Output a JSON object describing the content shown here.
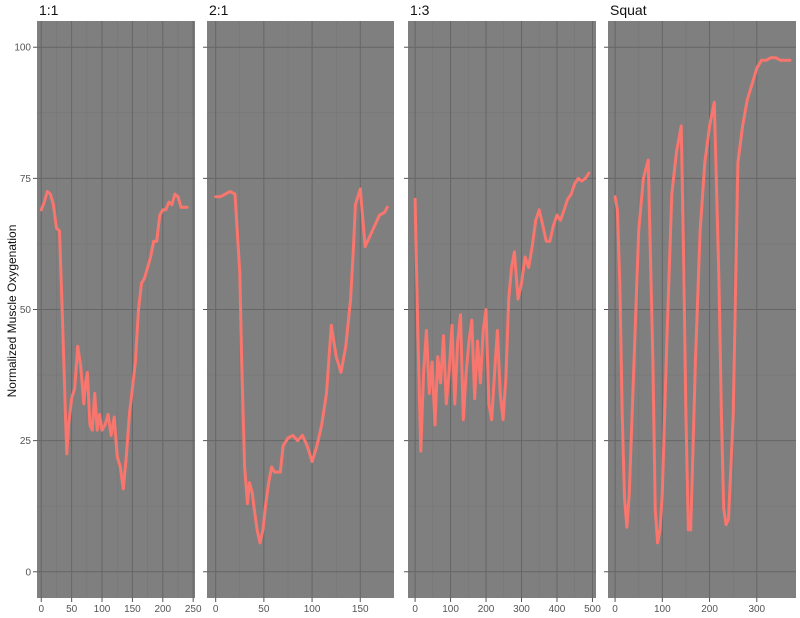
{
  "colors": {
    "panel_bg": "#7f7f7f",
    "grid_major": "#666666",
    "grid_minor": "#767676",
    "line": "#f8766d"
  },
  "chart_data": {
    "type": "line",
    "ylabel": "Normalized Muscle Oxygenation",
    "ylim": [
      -5,
      105
    ],
    "y_ticks": [
      0,
      25,
      50,
      75,
      100
    ],
    "legend": "none",
    "grid": true,
    "facets": [
      {
        "label": "1:1",
        "xlim": [
          -7,
          253
        ],
        "x_ticks": [
          0,
          50,
          100,
          150,
          200,
          250
        ],
        "x": [
          0,
          5,
          10,
          15,
          20,
          25,
          30,
          35,
          40,
          42,
          45,
          50,
          55,
          60,
          65,
          70,
          73,
          76,
          80,
          84,
          88,
          92,
          96,
          100,
          105,
          110,
          115,
          120,
          125,
          130,
          135,
          140,
          145,
          150,
          155,
          160,
          165,
          170,
          175,
          180,
          185,
          190,
          195,
          200,
          205,
          210,
          215,
          220,
          225,
          230,
          235,
          240
        ],
        "y": [
          69,
          70.5,
          72.5,
          72,
          70,
          65.5,
          65,
          48,
          29,
          22.5,
          28,
          33,
          35,
          43,
          39,
          32,
          36,
          38,
          28,
          27,
          34,
          27,
          30,
          27,
          28,
          30,
          26,
          29.5,
          22,
          20,
          15.8,
          22,
          30,
          35,
          40,
          50,
          55,
          56,
          58,
          60,
          63,
          63,
          68,
          69,
          69,
          70.5,
          70,
          72,
          71.5,
          69.5,
          69.5,
          69.5
        ]
      },
      {
        "label": "2:1",
        "xlim": [
          -9,
          185
        ],
        "x_ticks": [
          0,
          50,
          100,
          150
        ],
        "x": [
          0,
          5,
          10,
          15,
          20,
          25,
          27,
          30,
          33,
          35,
          38,
          40,
          43,
          46,
          49,
          52,
          55,
          58,
          61,
          64,
          67,
          70,
          75,
          80,
          85,
          90,
          95,
          100,
          105,
          110,
          115,
          120,
          125,
          130,
          135,
          140,
          143,
          145,
          150,
          155,
          160,
          165,
          170,
          175,
          178
        ],
        "y": [
          71.5,
          71.5,
          72,
          72.5,
          72,
          57,
          40,
          20,
          13,
          17,
          15,
          12,
          8,
          5.5,
          8,
          13,
          17,
          20,
          19,
          19,
          19,
          24,
          25.5,
          26,
          25,
          26,
          24,
          21,
          24,
          28,
          34,
          47,
          41,
          38,
          43,
          52,
          62,
          70,
          73,
          62,
          64,
          66,
          68,
          68.5,
          69.5
        ]
      },
      {
        "label": "1:3",
        "xlim": [
          -20,
          510
        ],
        "x_ticks": [
          0,
          100,
          200,
          300,
          400,
          500
        ],
        "x": [
          0,
          8,
          16,
          24,
          32,
          40,
          48,
          56,
          64,
          72,
          80,
          88,
          96,
          104,
          112,
          120,
          128,
          136,
          144,
          152,
          160,
          168,
          176,
          184,
          192,
          200,
          208,
          216,
          224,
          232,
          240,
          248,
          256,
          264,
          272,
          280,
          290,
          300,
          310,
          320,
          330,
          340,
          350,
          360,
          370,
          380,
          390,
          400,
          410,
          420,
          430,
          440,
          450,
          460,
          470,
          480,
          490
        ],
        "y": [
          71,
          45,
          23,
          38,
          46,
          34,
          40,
          28,
          41,
          36,
          45,
          32,
          38,
          47,
          32,
          44,
          49,
          29,
          38,
          44,
          48,
          33,
          44,
          36,
          46,
          50,
          32,
          29,
          38,
          46,
          34,
          29,
          37,
          52,
          58,
          61,
          52,
          55,
          60,
          58,
          62,
          67,
          69,
          66,
          63,
          63,
          66,
          68,
          67,
          69,
          71,
          72,
          74,
          75,
          74.5,
          75,
          76
        ]
      },
      {
        "label": "Squat",
        "xlim": [
          -15,
          383
        ],
        "x_ticks": [
          0,
          100,
          200,
          300
        ],
        "x": [
          0,
          5,
          10,
          15,
          20,
          25,
          30,
          40,
          50,
          60,
          70,
          80,
          85,
          90,
          95,
          100,
          110,
          120,
          130,
          140,
          145,
          150,
          155,
          160,
          170,
          180,
          190,
          200,
          210,
          220,
          225,
          230,
          235,
          240,
          250,
          260,
          270,
          280,
          290,
          300,
          310,
          320,
          330,
          340,
          350,
          360,
          370
        ],
        "y": [
          71.5,
          69,
          55,
          30,
          14,
          8.5,
          15,
          40,
          65,
          75,
          78.5,
          40,
          12,
          5.5,
          8,
          15,
          45,
          72,
          80,
          85,
          60,
          30,
          8,
          8,
          40,
          65,
          78,
          85,
          89.5,
          55,
          30,
          12,
          9,
          10,
          30,
          78,
          85,
          90,
          93,
          96,
          97.5,
          97.5,
          98,
          98,
          97.5,
          97.5,
          97.5
        ]
      }
    ]
  }
}
